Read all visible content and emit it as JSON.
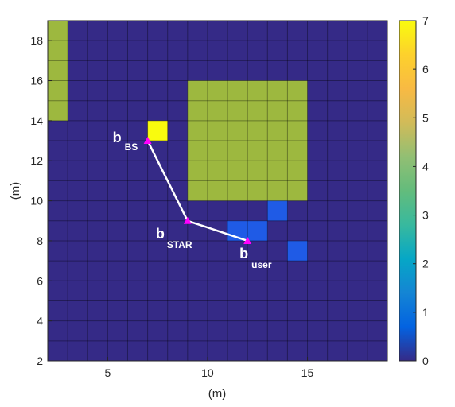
{
  "chart_data": {
    "type": "heatmap",
    "xlabel": "(m)",
    "ylabel": "(m)",
    "xlim": [
      2,
      19
    ],
    "ylim": [
      2,
      19
    ],
    "x_ticks": [
      "5",
      "10",
      "15"
    ],
    "y_ticks": [
      "2",
      "4",
      "6",
      "8",
      "10",
      "12",
      "14",
      "16",
      "18"
    ],
    "grid": true,
    "cell_size": 1,
    "background_value": 0,
    "colorbar": {
      "min": 0,
      "max": 7,
      "ticks": [
        "0",
        "1",
        "2",
        "3",
        "4",
        "5",
        "6",
        "7"
      ],
      "colormap": "parula"
    },
    "regions": [
      {
        "x": [
          2,
          3
        ],
        "y": [
          14,
          19
        ],
        "value": 5
      },
      {
        "x": [
          9,
          15
        ],
        "y": [
          10,
          16
        ],
        "value": 5
      },
      {
        "x": [
          7,
          8
        ],
        "y": [
          13,
          14
        ],
        "value": 7
      },
      {
        "x": [
          11,
          13
        ],
        "y": [
          8,
          9
        ],
        "value": 1
      },
      {
        "x": [
          13,
          14
        ],
        "y": [
          9,
          10
        ],
        "value": 1
      },
      {
        "x": [
          14,
          15
        ],
        "y": [
          7,
          8
        ],
        "value": 1
      }
    ],
    "path": [
      {
        "x": 7,
        "y": 13
      },
      {
        "x": 9,
        "y": 9
      },
      {
        "x": 12,
        "y": 8
      }
    ],
    "annotations": [
      {
        "main": "b",
        "sub": "BS",
        "x": 7,
        "y": 13
      },
      {
        "main": "b",
        "sub": "STAR",
        "x": 9,
        "y": 9
      },
      {
        "main": "b",
        "sub": "user",
        "x": 12,
        "y": 8
      }
    ],
    "colors": {
      "background": "#352a87",
      "region5": "#9db83f",
      "region7": "#f9fb0e",
      "region1": "#1f5be6",
      "path": "#ffffff",
      "marker": "#ff00ff"
    }
  }
}
